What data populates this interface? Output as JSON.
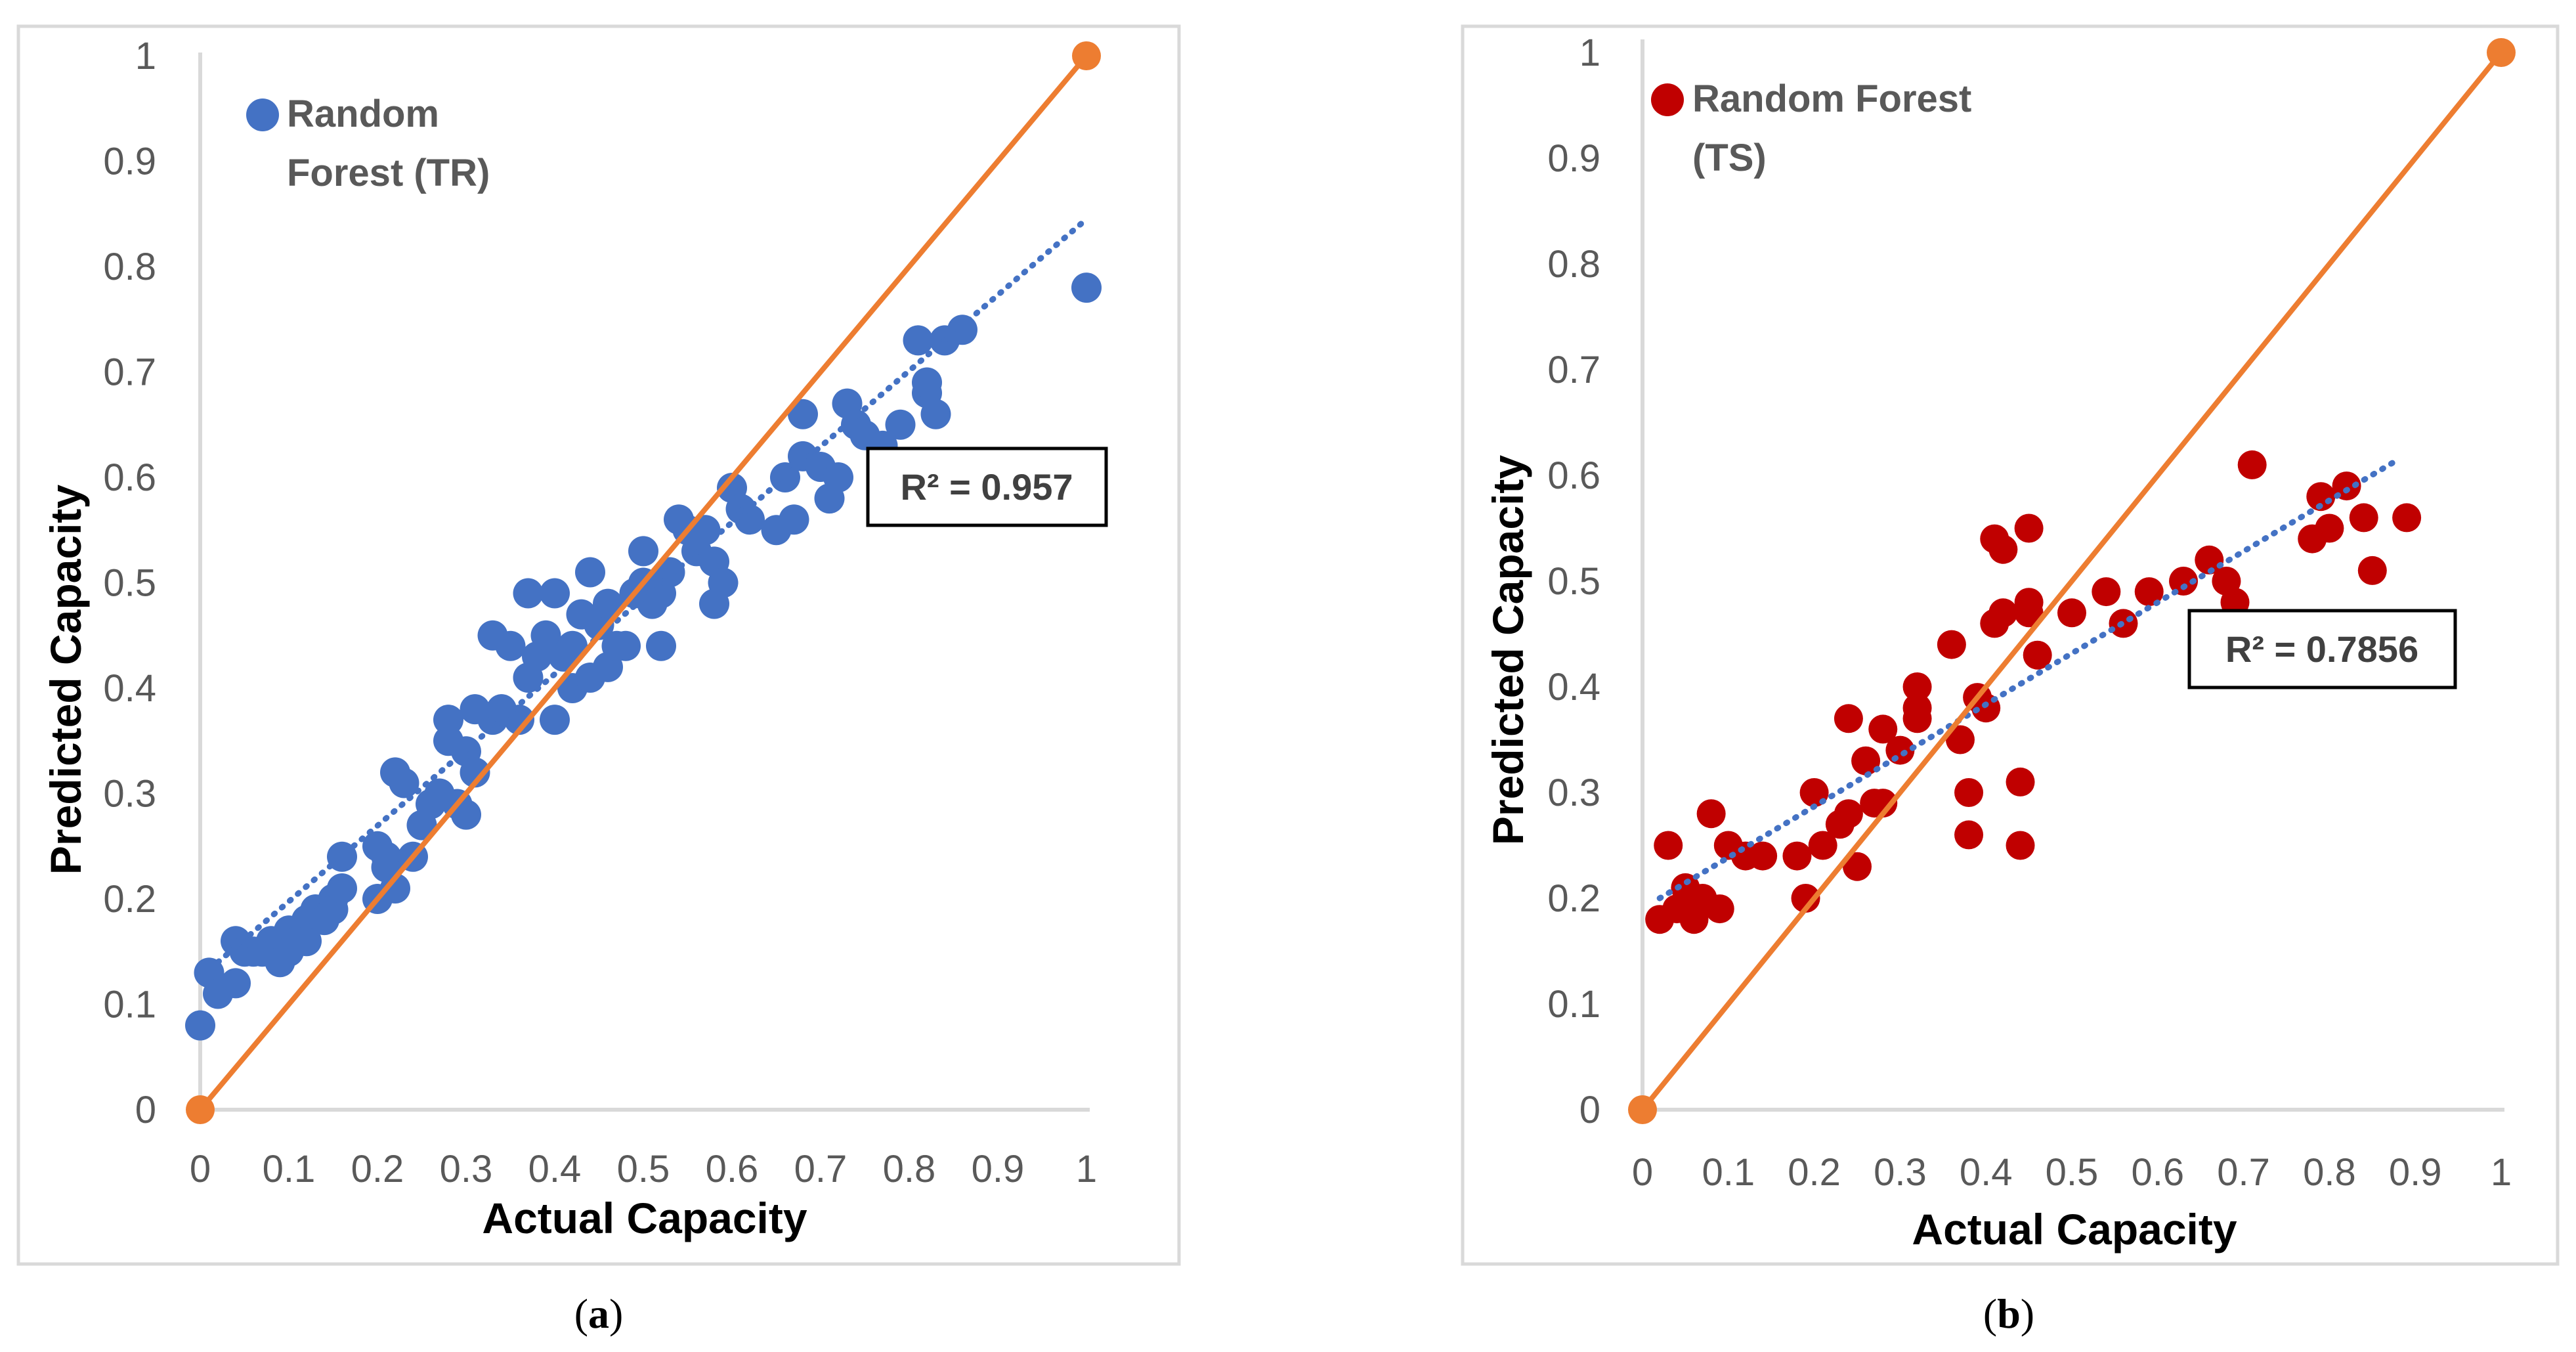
{
  "chart_data": [
    {
      "type": "scatter",
      "panel": "a",
      "caption": "(a)",
      "caption_letter": "a",
      "xlabel": "Actual Capacity",
      "ylabel": "Predicted Capacity",
      "xlim": [
        0,
        1
      ],
      "ylim": [
        0,
        1
      ],
      "x_ticks": [
        "0",
        "0.1",
        "0.2",
        "0.3",
        "0.4",
        "0.5",
        "0.6",
        "0.7",
        "0.8",
        "0.9",
        "1"
      ],
      "y_ticks": [
        "0",
        "0.1",
        "0.2",
        "0.3",
        "0.4",
        "0.5",
        "0.6",
        "0.7",
        "0.8",
        "0.9",
        "1"
      ],
      "grid": false,
      "legend": {
        "position": "top-left",
        "label_line1": "Random",
        "label_line2": "Forest (TR)"
      },
      "r2_label": "R² = 0.957",
      "colors": {
        "points": "#4472C4",
        "identity": "#ED7D31",
        "trend": "#4472C4"
      },
      "trendline": {
        "x": [
          0.02,
          1.0
        ],
        "y": [
          0.14,
          0.845
        ]
      },
      "identity_line": {
        "x": [
          0,
          1
        ],
        "y": [
          0,
          1
        ]
      },
      "series": [
        {
          "name": "Random Forest (TR)",
          "x": [
            0.0,
            0.01,
            0.02,
            0.04,
            0.04,
            0.05,
            0.06,
            0.07,
            0.08,
            0.09,
            0.1,
            0.1,
            0.11,
            0.12,
            0.12,
            0.13,
            0.14,
            0.15,
            0.15,
            0.16,
            0.16,
            0.2,
            0.2,
            0.21,
            0.21,
            0.22,
            0.22,
            0.23,
            0.24,
            0.25,
            0.26,
            0.27,
            0.28,
            0.28,
            0.29,
            0.3,
            0.3,
            0.31,
            0.31,
            0.33,
            0.33,
            0.34,
            0.35,
            0.36,
            0.37,
            0.37,
            0.38,
            0.39,
            0.4,
            0.4,
            0.41,
            0.42,
            0.42,
            0.43,
            0.44,
            0.44,
            0.45,
            0.46,
            0.46,
            0.47,
            0.48,
            0.49,
            0.5,
            0.5,
            0.51,
            0.52,
            0.52,
            0.53,
            0.54,
            0.55,
            0.56,
            0.57,
            0.58,
            0.58,
            0.59,
            0.6,
            0.61,
            0.62,
            0.65,
            0.66,
            0.67,
            0.68,
            0.68,
            0.7,
            0.71,
            0.72,
            0.73,
            0.74,
            0.75,
            0.77,
            0.79,
            0.81,
            0.82,
            0.82,
            0.83,
            0.84,
            0.86,
            1.0
          ],
          "y": [
            0.08,
            0.13,
            0.11,
            0.12,
            0.16,
            0.15,
            0.15,
            0.15,
            0.16,
            0.14,
            0.17,
            0.15,
            0.16,
            0.18,
            0.16,
            0.19,
            0.18,
            0.2,
            0.19,
            0.24,
            0.21,
            0.2,
            0.25,
            0.23,
            0.24,
            0.32,
            0.21,
            0.31,
            0.24,
            0.27,
            0.29,
            0.3,
            0.37,
            0.35,
            0.29,
            0.28,
            0.34,
            0.38,
            0.32,
            0.45,
            0.37,
            0.38,
            0.44,
            0.37,
            0.49,
            0.41,
            0.43,
            0.45,
            0.37,
            0.49,
            0.43,
            0.44,
            0.4,
            0.47,
            0.41,
            0.51,
            0.46,
            0.48,
            0.42,
            0.44,
            0.44,
            0.49,
            0.53,
            0.5,
            0.48,
            0.44,
            0.49,
            0.51,
            0.56,
            0.55,
            0.53,
            0.55,
            0.48,
            0.52,
            0.5,
            0.59,
            0.57,
            0.56,
            0.55,
            0.6,
            0.56,
            0.66,
            0.62,
            0.61,
            0.58,
            0.6,
            0.67,
            0.65,
            0.64,
            0.63,
            0.65,
            0.73,
            0.68,
            0.69,
            0.66,
            0.73,
            0.74,
            0.78
          ]
        }
      ]
    },
    {
      "type": "scatter",
      "panel": "b",
      "caption": "(b)",
      "caption_letter": "b",
      "xlabel": "Actual Capacity",
      "ylabel": "Predicted Capacity",
      "xlim": [
        0,
        1
      ],
      "ylim": [
        0,
        1
      ],
      "x_ticks": [
        "0",
        "0.1",
        "0.2",
        "0.3",
        "0.4",
        "0.5",
        "0.6",
        "0.7",
        "0.8",
        "0.9",
        "1"
      ],
      "y_ticks": [
        "0",
        "0.1",
        "0.2",
        "0.3",
        "0.4",
        "0.5",
        "0.6",
        "0.7",
        "0.8",
        "0.9",
        "1"
      ],
      "grid": false,
      "legend": {
        "position": "top-left",
        "label_line1": "Random Forest",
        "label_line2": "(TS)"
      },
      "r2_label": "R² = 0.7856",
      "colors": {
        "points": "#C00000",
        "identity": "#ED7D31",
        "trend": "#4472C4"
      },
      "trendline": {
        "x": [
          0.02,
          0.88
        ],
        "y": [
          0.2,
          0.615
        ]
      },
      "identity_line": {
        "x": [
          0,
          1
        ],
        "y": [
          0,
          1
        ]
      },
      "series": [
        {
          "name": "Random Forest (TS)",
          "x": [
            0.02,
            0.03,
            0.04,
            0.05,
            0.06,
            0.07,
            0.08,
            0.09,
            0.1,
            0.12,
            0.14,
            0.18,
            0.19,
            0.2,
            0.21,
            0.23,
            0.24,
            0.24,
            0.25,
            0.26,
            0.27,
            0.28,
            0.28,
            0.3,
            0.32,
            0.32,
            0.32,
            0.36,
            0.37,
            0.38,
            0.38,
            0.39,
            0.4,
            0.41,
            0.41,
            0.42,
            0.42,
            0.44,
            0.44,
            0.45,
            0.45,
            0.45,
            0.46,
            0.5,
            0.54,
            0.56,
            0.59,
            0.63,
            0.66,
            0.68,
            0.69,
            0.71,
            0.78,
            0.79,
            0.8,
            0.82,
            0.84,
            0.85,
            0.89
          ],
          "y": [
            0.18,
            0.25,
            0.19,
            0.21,
            0.18,
            0.2,
            0.28,
            0.19,
            0.25,
            0.24,
            0.24,
            0.24,
            0.2,
            0.3,
            0.25,
            0.27,
            0.28,
            0.37,
            0.23,
            0.33,
            0.29,
            0.29,
            0.36,
            0.34,
            0.37,
            0.38,
            0.4,
            0.44,
            0.35,
            0.26,
            0.3,
            0.39,
            0.38,
            0.46,
            0.54,
            0.47,
            0.53,
            0.25,
            0.31,
            0.48,
            0.47,
            0.55,
            0.43,
            0.47,
            0.49,
            0.46,
            0.49,
            0.5,
            0.52,
            0.5,
            0.48,
            0.61,
            0.54,
            0.58,
            0.55,
            0.59,
            0.56,
            0.51,
            0.56
          ]
        }
      ]
    }
  ]
}
